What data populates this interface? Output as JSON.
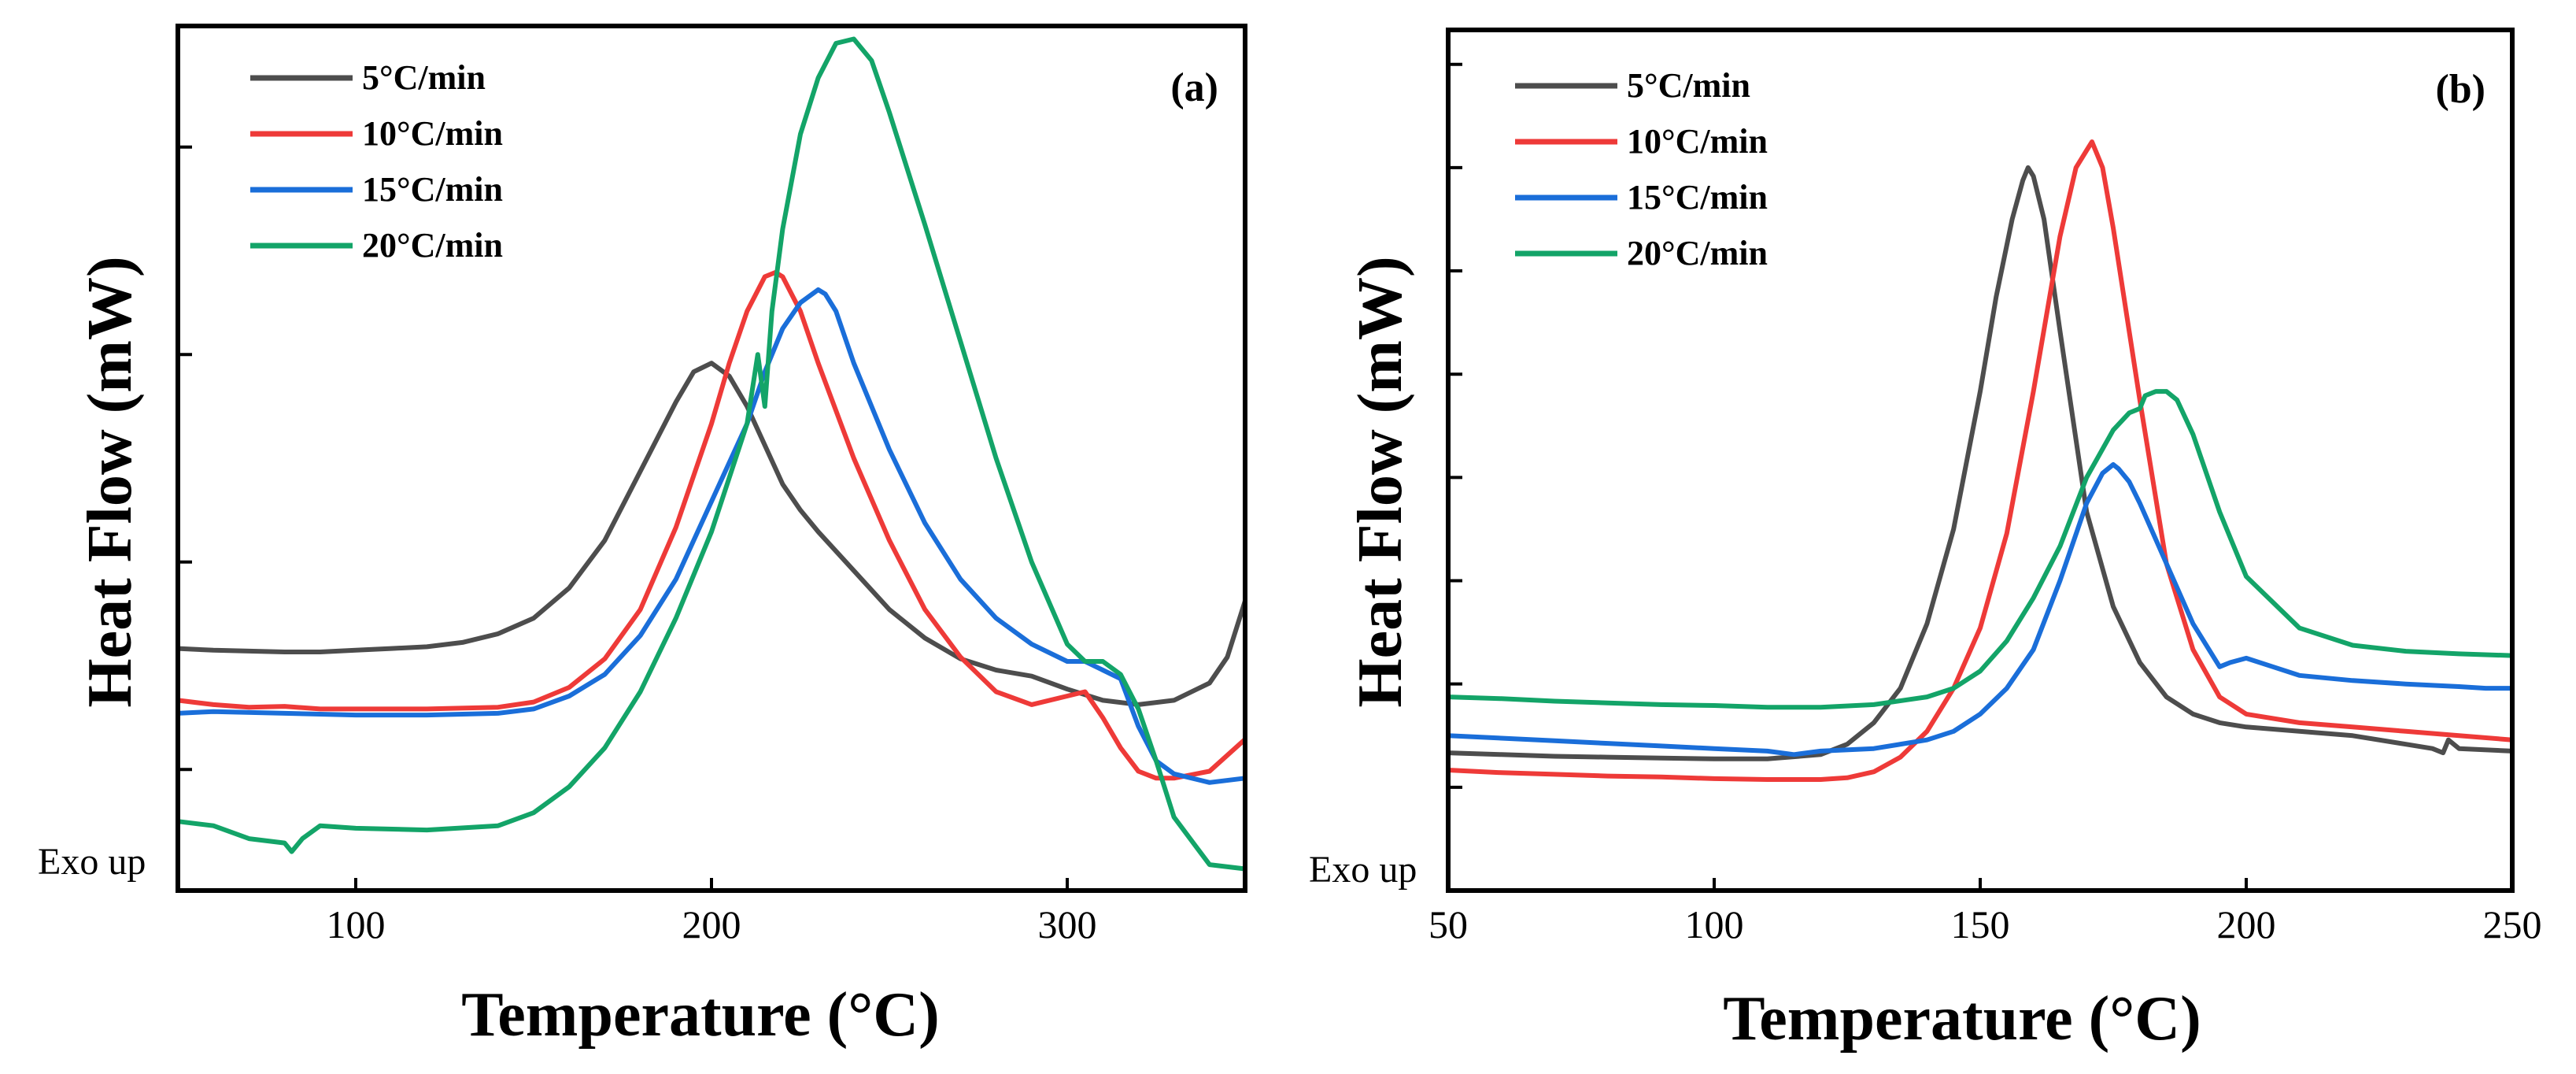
{
  "colors": {
    "5": "#4d4d4d",
    "10": "#ee3a38",
    "15": "#1a6ed9",
    "20": "#13a468"
  },
  "chart_data": [
    {
      "type": "line",
      "panel_label": "(a)",
      "xlabel": "Temperature (°C)",
      "ylabel": "Heat Flow (mW)",
      "exo_label": "Exo up",
      "xlim": [
        50,
        350
      ],
      "ylim": [
        0,
        100
      ],
      "xticks": [
        100,
        200,
        300
      ],
      "yticks": [
        14,
        38,
        62,
        86
      ],
      "ytick_labels_shown": false,
      "legend_position": "top-left",
      "series": [
        {
          "name": "5°C/min",
          "color_key": "5",
          "x": [
            50,
            60,
            70,
            80,
            90,
            100,
            110,
            120,
            130,
            140,
            150,
            160,
            170,
            180,
            190,
            195,
            200,
            205,
            210,
            215,
            220,
            225,
            230,
            240,
            250,
            260,
            270,
            280,
            290,
            300,
            310,
            320,
            330,
            340,
            345,
            350
          ],
          "y": [
            28,
            27.8,
            27.7,
            27.6,
            27.6,
            27.8,
            28,
            28.2,
            28.7,
            29.7,
            31.5,
            35,
            40.5,
            48.5,
            56.5,
            60,
            61,
            59.5,
            56,
            51.5,
            47,
            44,
            41.5,
            37,
            32.5,
            29.2,
            26.8,
            25.5,
            24.8,
            23.3,
            22,
            21.5,
            22,
            24,
            27,
            33.5
          ]
        },
        {
          "name": "10°C/min",
          "color_key": "10",
          "x": [
            50,
            60,
            70,
            80,
            90,
            100,
            120,
            140,
            150,
            160,
            170,
            180,
            190,
            200,
            205,
            210,
            215,
            218,
            220,
            225,
            230,
            240,
            250,
            260,
            270,
            280,
            290,
            300,
            305,
            310,
            315,
            320,
            325,
            330,
            340,
            350
          ],
          "y": [
            22,
            21.5,
            21.2,
            21.3,
            21,
            21,
            21,
            21.2,
            21.8,
            23.5,
            26.8,
            32.5,
            42,
            54,
            61,
            67,
            71,
            71.5,
            71,
            67,
            61,
            50,
            40.5,
            32.5,
            27,
            23,
            21.5,
            22.5,
            23,
            20,
            16.5,
            13.8,
            13,
            13,
            13.8,
            17.5
          ]
        },
        {
          "name": "15°C/min",
          "color_key": "15",
          "x": [
            50,
            60,
            80,
            100,
            120,
            140,
            150,
            160,
            170,
            180,
            190,
            200,
            210,
            215,
            220,
            225,
            230,
            232,
            235,
            240,
            250,
            260,
            270,
            280,
            290,
            300,
            305,
            310,
            315,
            320,
            325,
            330,
            340,
            350
          ],
          "y": [
            20.5,
            20.7,
            20.5,
            20.3,
            20.3,
            20.5,
            21,
            22.5,
            25,
            29.5,
            36,
            45,
            54,
            60,
            65,
            68,
            69.5,
            69,
            67,
            61,
            51,
            42.5,
            36,
            31.5,
            28.5,
            26.5,
            26.5,
            25.5,
            24.5,
            19,
            15,
            13.5,
            12.5,
            13
          ]
        },
        {
          "name": "20°C/min",
          "color_key": "20",
          "x": [
            50,
            60,
            70,
            80,
            82,
            85,
            90,
            100,
            120,
            140,
            150,
            160,
            170,
            180,
            190,
            200,
            210,
            213,
            215,
            217,
            220,
            225,
            230,
            235,
            240,
            245,
            250,
            260,
            270,
            280,
            290,
            300,
            305,
            310,
            315,
            320,
            325,
            330,
            340,
            350
          ],
          "y": [
            8,
            7.5,
            6,
            5.5,
            4.5,
            6,
            7.5,
            7.2,
            7,
            7.5,
            9,
            12,
            16.5,
            23,
            31.5,
            41.5,
            54,
            62,
            56,
            67,
            76.5,
            87.5,
            94,
            98,
            98.5,
            96,
            90,
            77,
            63.5,
            50,
            38,
            28.5,
            26.5,
            26.5,
            25,
            21,
            15,
            8.5,
            3,
            2.5
          ]
        }
      ]
    },
    {
      "type": "line",
      "panel_label": "(b)",
      "xlabel": "Temperature (°C)",
      "ylabel": "Heat Flow (mW)",
      "exo_label": "Exo up",
      "xlim": [
        50,
        250
      ],
      "ylim": [
        0,
        100
      ],
      "xticks": [
        50,
        100,
        150,
        200,
        250
      ],
      "yticks": [
        12,
        24,
        36,
        48,
        60,
        72,
        84,
        96
      ],
      "ytick_labels_shown": false,
      "legend_position": "top-left",
      "series": [
        {
          "name": "5°C/min",
          "color_key": "5",
          "x": [
            50,
            60,
            70,
            80,
            90,
            100,
            110,
            120,
            125,
            130,
            135,
            140,
            145,
            150,
            153,
            156,
            158,
            159,
            160,
            162,
            165,
            170,
            175,
            180,
            185,
            190,
            195,
            200,
            210,
            220,
            230,
            235,
            237,
            238,
            240,
            250
          ],
          "y": [
            16,
            15.8,
            15.6,
            15.5,
            15.4,
            15.3,
            15.3,
            15.8,
            17,
            19.5,
            23.5,
            31,
            42,
            58,
            69,
            78,
            82.5,
            84,
            83,
            78,
            65,
            44,
            33,
            26.5,
            22.5,
            20.5,
            19.5,
            19,
            18.5,
            18,
            17,
            16.5,
            16,
            17.5,
            16.5,
            16.2
          ]
        },
        {
          "name": "10°C/min",
          "color_key": "10",
          "x": [
            50,
            60,
            70,
            80,
            90,
            100,
            110,
            120,
            125,
            130,
            135,
            140,
            145,
            150,
            155,
            160,
            165,
            168,
            170,
            171,
            173,
            175,
            180,
            185,
            190,
            195,
            200,
            210,
            220,
            230,
            240,
            250
          ],
          "y": [
            14,
            13.7,
            13.5,
            13.3,
            13.2,
            13,
            12.9,
            12.9,
            13.1,
            13.8,
            15.5,
            18.5,
            23.5,
            30.5,
            41.5,
            58,
            76,
            84,
            86,
            87,
            84,
            77,
            57,
            38,
            28,
            22.5,
            20.5,
            19.5,
            19,
            18.5,
            18,
            17.5
          ]
        },
        {
          "name": "15°C/min",
          "color_key": "15",
          "x": [
            50,
            60,
            70,
            80,
            90,
            100,
            110,
            115,
            120,
            130,
            140,
            145,
            150,
            155,
            160,
            165,
            170,
            173,
            175,
            176,
            178,
            180,
            185,
            190,
            195,
            197,
            200,
            205,
            210,
            220,
            230,
            240,
            245,
            250
          ],
          "y": [
            18,
            17.7,
            17.4,
            17.1,
            16.8,
            16.5,
            16.2,
            15.8,
            16.2,
            16.5,
            17.5,
            18.5,
            20.5,
            23.5,
            28,
            36,
            45,
            48.5,
            49.5,
            49,
            47.5,
            45,
            38,
            31,
            26,
            26.5,
            27,
            26,
            25,
            24.4,
            24,
            23.7,
            23.5,
            23.5
          ]
        },
        {
          "name": "20°C/min",
          "color_key": "20",
          "x": [
            50,
            60,
            70,
            80,
            90,
            100,
            110,
            120,
            130,
            140,
            145,
            150,
            155,
            160,
            165,
            170,
            175,
            178,
            180,
            181,
            183,
            185,
            187,
            190,
            195,
            200,
            210,
            220,
            230,
            240,
            250
          ],
          "y": [
            22.5,
            22.3,
            22,
            21.8,
            21.6,
            21.5,
            21.3,
            21.3,
            21.6,
            22.5,
            23.5,
            25.5,
            29,
            34,
            40,
            48,
            53.5,
            55.5,
            56,
            57.5,
            58,
            58,
            57,
            53,
            44,
            36.5,
            30.5,
            28.5,
            27.8,
            27.5,
            27.3
          ]
        }
      ]
    }
  ]
}
